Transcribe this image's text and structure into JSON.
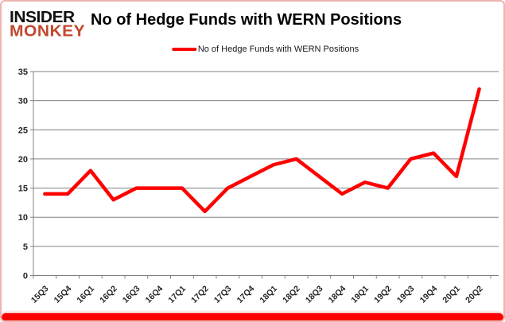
{
  "logo": {
    "line1": "INSIDER",
    "line2": "MONKEY",
    "line2_color": "#c3472e"
  },
  "header": {
    "title": "No of Hedge Funds with WERN Positions"
  },
  "legend": {
    "label": "No of Hedge Funds with WERN Positions",
    "marker_color": "#ff0000"
  },
  "frame": {
    "border_color": "#eeb4ae",
    "bottom_bar_color": "#ff0000",
    "background": "#ffffff"
  },
  "chart_data": {
    "type": "line",
    "title": "No of Hedge Funds with WERN Positions",
    "series_name": "No of Hedge Funds with WERN Positions",
    "categories": [
      "15Q3",
      "15Q4",
      "16Q1",
      "16Q2",
      "16Q3",
      "16Q4",
      "17Q1",
      "17Q2",
      "17Q3",
      "17Q4",
      "18Q1",
      "18Q2",
      "18Q3",
      "18Q4",
      "19Q1",
      "19Q2",
      "19Q3",
      "19Q4",
      "20Q1",
      "20Q2"
    ],
    "values": [
      14,
      14,
      18,
      13,
      15,
      15,
      15,
      11,
      15,
      17,
      19,
      20,
      17,
      14,
      16,
      15,
      20,
      21,
      17,
      32
    ],
    "xlabel": "",
    "ylabel": "",
    "ylim": [
      0,
      35
    ],
    "yticks": [
      0,
      5,
      10,
      15,
      20,
      25,
      30,
      35
    ],
    "grid": true,
    "grid_color": "#808080",
    "line_color": "#fe0000",
    "legend_position": "top-center"
  }
}
